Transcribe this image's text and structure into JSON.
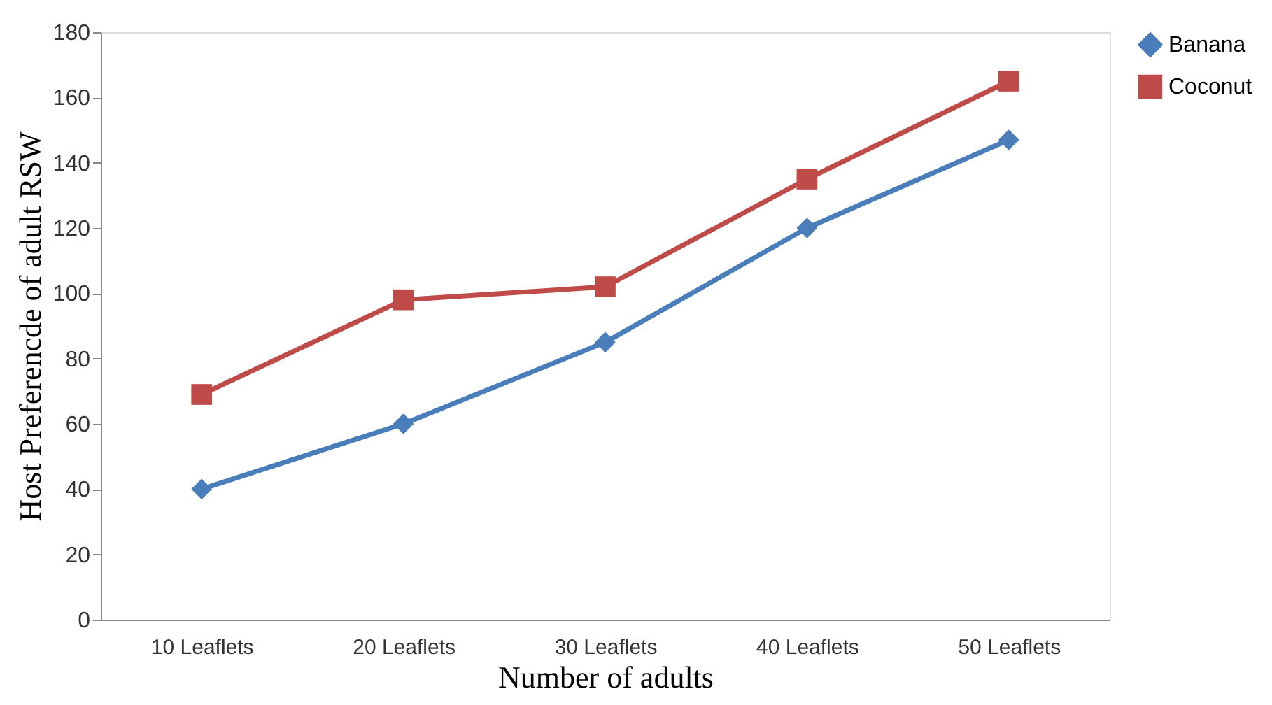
{
  "chart_data": {
    "type": "line",
    "xlabel": "Number of adults",
    "ylabel": "Host Preferencde of adult RSW",
    "categories": [
      "10 Leaflets",
      "20 Leaflets",
      "30 Leaflets",
      "40 Leaflets",
      "50 Leaflets"
    ],
    "series": [
      {
        "name": "Banana",
        "color": "#4a7ebb",
        "marker": "diamond",
        "values": [
          40,
          60,
          85,
          120,
          147
        ]
      },
      {
        "name": "Coconut",
        "color": "#be4b48",
        "marker": "square",
        "values": [
          69,
          98,
          102,
          135,
          165
        ]
      }
    ],
    "ylim": [
      0,
      180
    ],
    "yticks": [
      0,
      20,
      40,
      60,
      80,
      100,
      120,
      140,
      160,
      180
    ],
    "grid": false,
    "legend": "right",
    "line_style": "solid"
  }
}
